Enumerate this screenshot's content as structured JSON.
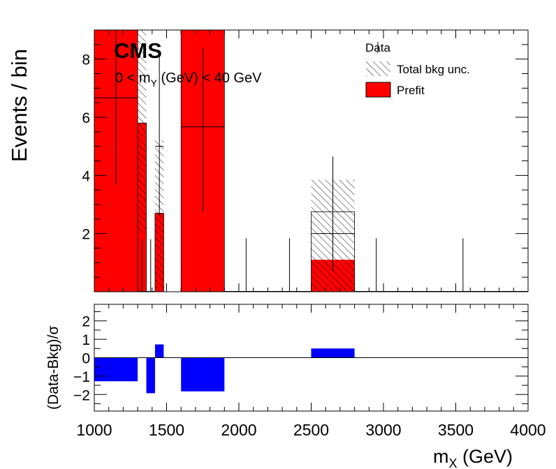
{
  "chart_data": [
    {
      "type": "bar",
      "panel": "main",
      "cms_label": "CMS",
      "selection_label": "0 < m_{Y} (GeV) < 40 GeV",
      "xlabel": "m_{X} (GeV)",
      "ylabel": "Events / bin",
      "xlim": [
        1000,
        4000
      ],
      "ylim": [
        0,
        9
      ],
      "x_ticks": [
        1000,
        1500,
        2000,
        2500,
        3000,
        3500,
        4000
      ],
      "y_ticks": [
        2,
        4,
        6,
        8
      ],
      "legend": {
        "position": "top-right",
        "entries": [
          {
            "label": "Data",
            "style": "marker"
          },
          {
            "label": "Total bkg unc.",
            "style": "hatch"
          },
          {
            "label": "Prefit",
            "style": "fill",
            "color": "#ff0000"
          }
        ]
      },
      "bins": [
        {
          "lo": 1000,
          "hi": 1300,
          "data": 6.67,
          "data_err": [
            3.0,
            3.0
          ],
          "prefit": 9.0,
          "bkg": 9.0,
          "unc": [
            9.0,
            9.0
          ]
        },
        {
          "lo": 1300,
          "hi": 1360,
          "data": 0.0,
          "data_err": [
            0.0,
            1.8
          ],
          "prefit": 5.8,
          "bkg": 5.8,
          "unc": [
            2.05,
            9.0
          ]
        },
        {
          "lo": 1360,
          "hi": 1420,
          "data": 0.0,
          "data_err": [
            0.0,
            1.8
          ],
          "prefit": 0.0,
          "bkg": 0.0,
          "unc": [
            0.0,
            0.0
          ]
        },
        {
          "lo": 1420,
          "hi": 1480,
          "data": 5.0,
          "data_err": [
            2.4,
            3.3
          ],
          "prefit": 2.7,
          "bkg": 2.7,
          "unc": [
            0.0,
            5.2
          ]
        },
        {
          "lo": 1480,
          "hi": 1600,
          "data": 0.0,
          "data_err": [
            0.0,
            0.0
          ],
          "prefit": 0.0,
          "bkg": 0.0,
          "unc": [
            0.0,
            0.0
          ]
        },
        {
          "lo": 1600,
          "hi": 1900,
          "data": 5.67,
          "data_err": [
            2.9,
            2.7
          ],
          "prefit": 9.0,
          "bkg": 9.0,
          "unc": [
            9.0,
            9.0
          ]
        },
        {
          "lo": 1900,
          "hi": 2200,
          "data": 0.0,
          "data_err": [
            0.0,
            1.84
          ],
          "prefit": 0.0,
          "bkg": 0.0,
          "unc": [
            0.0,
            0.0
          ]
        },
        {
          "lo": 2200,
          "hi": 2500,
          "data": 0.0,
          "data_err": [
            0.0,
            1.84
          ],
          "prefit": 0.0,
          "bkg": 0.0,
          "unc": [
            0.0,
            0.0
          ]
        },
        {
          "lo": 2500,
          "hi": 2800,
          "data": 2.0,
          "data_err": [
            1.3,
            2.65
          ],
          "prefit": 1.1,
          "bkg": 2.75,
          "unc": [
            0.0,
            3.85
          ]
        },
        {
          "lo": 2800,
          "hi": 3100,
          "data": 0.0,
          "data_err": [
            0.0,
            1.84
          ],
          "prefit": 0.0,
          "bkg": 0.0,
          "unc": [
            0.0,
            0.0
          ]
        },
        {
          "lo": 3100,
          "hi": 4000,
          "data": 0.0,
          "data_err": [
            0.0,
            1.84
          ],
          "prefit": 0.0,
          "bkg": 0.0,
          "unc": [
            0.0,
            0.0
          ]
        }
      ]
    },
    {
      "type": "bar",
      "panel": "ratio",
      "ylabel": "(Data-Bkg)/σ",
      "xlabel": "m_{X} (GeV)",
      "xlim": [
        1000,
        4000
      ],
      "ylim": [
        -2.9,
        2.9
      ],
      "y_ticks": [
        -2,
        -1,
        0,
        1,
        2
      ],
      "bar_color": "#0000ff",
      "bins": [
        {
          "lo": 1000,
          "hi": 1300,
          "value": -1.28
        },
        {
          "lo": 1300,
          "hi": 1360,
          "value": 0.0
        },
        {
          "lo": 1360,
          "hi": 1420,
          "value": -1.93
        },
        {
          "lo": 1420,
          "hi": 1480,
          "value": 0.72
        },
        {
          "lo": 1480,
          "hi": 1600,
          "value": 0.0
        },
        {
          "lo": 1600,
          "hi": 1900,
          "value": -1.83
        },
        {
          "lo": 1900,
          "hi": 2500,
          "value": 0.0
        },
        {
          "lo": 2500,
          "hi": 2800,
          "value": 0.5
        },
        {
          "lo": 2800,
          "hi": 4000,
          "value": 0.0
        }
      ]
    }
  ]
}
